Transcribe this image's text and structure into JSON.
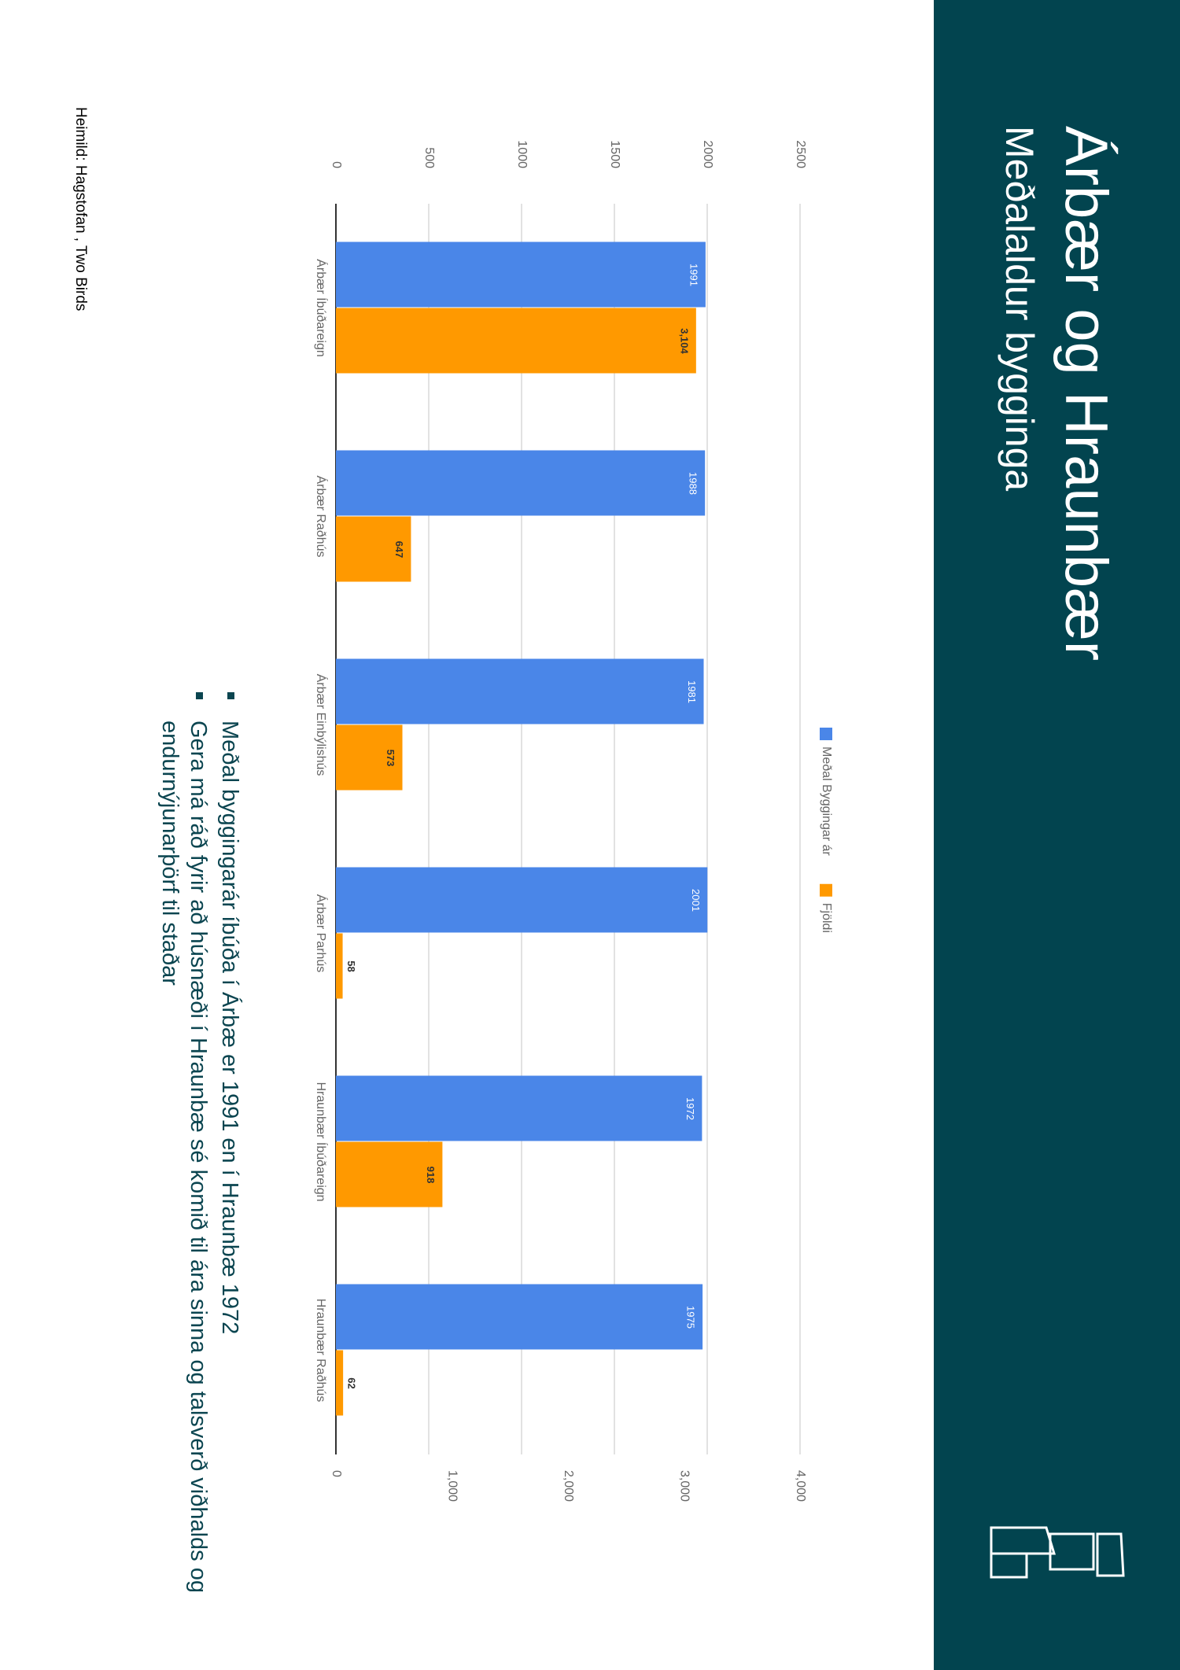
{
  "header": {
    "title": "Árbær og Hraunbær",
    "subtitle": "Meðalaldur bygginga"
  },
  "chart_data": {
    "type": "bar",
    "categories": [
      "Árbær Íbúðareign",
      "Árbær Raðhús",
      "Árbær Einbýlishús",
      "Árbær Parhús",
      "Hraunbær Íbúðareign",
      "Hraunbær Raðhús"
    ],
    "series": [
      {
        "name": "Meðal Byggingar ár",
        "color": "#4a86e8",
        "values": [
          1991,
          1988,
          1981,
          2001,
          1972,
          1975
        ]
      },
      {
        "name": "Fjöldi",
        "color": "#ff9900",
        "axis": "y2",
        "values": [
          3104,
          647,
          573,
          58,
          918,
          62
        ],
        "value_labels": [
          "3,104",
          "647",
          "573",
          "58",
          "918",
          "62"
        ]
      }
    ],
    "ylim": [
      0,
      2500
    ],
    "yticks": [
      0,
      500,
      1000,
      1500,
      2000,
      2500
    ],
    "y2lim": [
      0,
      4000
    ],
    "y2ticks": [
      0,
      {
        "value": 1000,
        "label": "1,000"
      },
      {
        "value": 2000,
        "label": "2,000"
      },
      {
        "value": 3000,
        "label": "3,000"
      },
      {
        "value": 4000,
        "label": "4,000"
      }
    ],
    "grid": true,
    "legend": "top"
  },
  "bullets": [
    "Meðal byggingarár íbúða í Árbæ er 1991 en í Hraunbæ 1972",
    "Gera má ráð fyrir að húsnæði í Hraunbæ sé komið til ára sinna og talsverð viðhalds og endurnýjunarþörf til staðar"
  ],
  "source": "Heimild: Hagstofan , Two Birds"
}
